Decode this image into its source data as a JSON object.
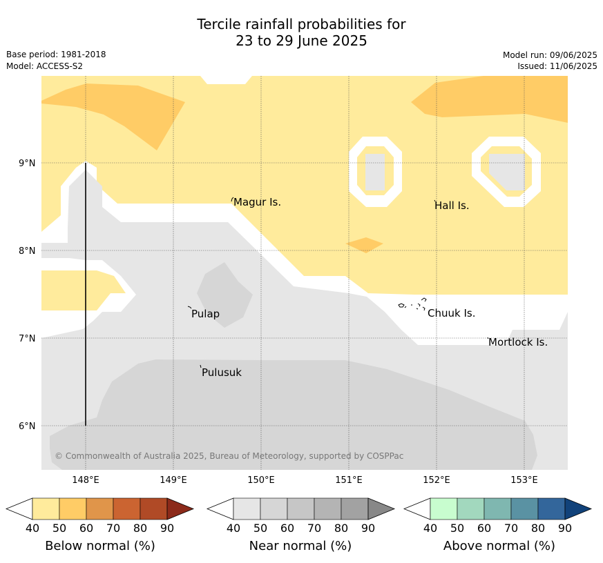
{
  "title": {
    "line1": "Tercile rainfall probabilities for",
    "line2": "23 to 29 June 2025"
  },
  "meta": {
    "base_period": "Base period: 1981-2018",
    "model": "Model: ACCESS-S2",
    "model_run": "Model run: 09/06/2025",
    "issued": "Issued: 11/06/2025"
  },
  "map": {
    "lat_labels": [
      "9°N",
      "8°N",
      "7°N",
      "6°N"
    ],
    "lon_labels": [
      "148°E",
      "149°E",
      "150°E",
      "151°E",
      "152°E",
      "153°E"
    ],
    "places": [
      {
        "name": "Magur Is."
      },
      {
        "name": "Hall Is."
      },
      {
        "name": "Pulap"
      },
      {
        "name": "Chuuk Is."
      },
      {
        "name": "Mortlock Is."
      },
      {
        "name": "Pulusuk"
      }
    ],
    "copyright": "© Commonwealth of Australia 2025, Bureau of Meteorology, supported by COSPPac",
    "colors": {
      "below_50": "#ffeb9c",
      "below_60": "#ffcc66",
      "near_40": "#e6e6e6",
      "near_50": "#d6d6d6"
    }
  },
  "colorbars": [
    {
      "name": "Below normal (%)",
      "ticks": [
        "40",
        "50",
        "60",
        "70",
        "80",
        "90"
      ],
      "colors": [
        "#ffffff",
        "#ffeb9c",
        "#ffcc66",
        "#e0954a",
        "#cb6431",
        "#b04a26",
        "#8c2a1a"
      ]
    },
    {
      "name": "Near normal (%)",
      "ticks": [
        "40",
        "50",
        "60",
        "70",
        "80",
        "90"
      ],
      "colors": [
        "#ffffff",
        "#e6e6e6",
        "#d6d6d6",
        "#c6c6c6",
        "#b4b4b4",
        "#a2a2a2",
        "#888888"
      ]
    },
    {
      "name": "Above normal (%)",
      "ticks": [
        "40",
        "50",
        "60",
        "70",
        "80",
        "90"
      ],
      "colors": [
        "#ffffff",
        "#c8fdcf",
        "#a2d8be",
        "#7fb7b0",
        "#5a92a3",
        "#33669b",
        "#11427a"
      ]
    }
  ]
}
